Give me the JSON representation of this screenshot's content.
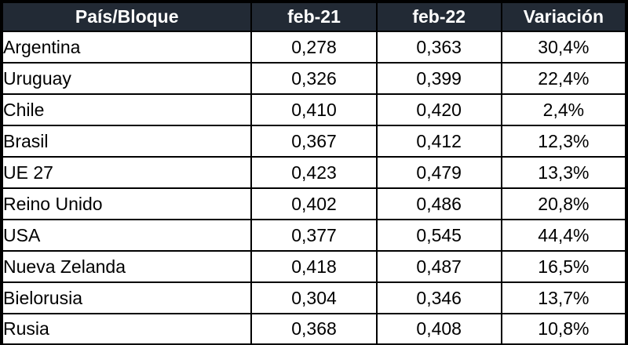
{
  "chart_data": {
    "type": "table",
    "columns": [
      "País/Bloque",
      "feb-21",
      "feb-22",
      "Variación"
    ],
    "rows": [
      [
        "Argentina",
        "0,278",
        "0,363",
        "30,4%"
      ],
      [
        "Uruguay",
        "0,326",
        "0,399",
        "22,4%"
      ],
      [
        "Chile",
        "0,410",
        "0,420",
        "2,4%"
      ],
      [
        "Brasil",
        "0,367",
        "0,412",
        "12,3%"
      ],
      [
        "UE 27",
        "0,423",
        "0,479",
        "13,3%"
      ],
      [
        "Reino Unido",
        "0,402",
        "0,486",
        "20,8%"
      ],
      [
        "USA",
        "0,377",
        "0,545",
        "44,4%"
      ],
      [
        "Nueva Zelanda",
        "0,418",
        "0,487",
        "16,5%"
      ],
      [
        "Bielorusia",
        "0,304",
        "0,346",
        "13,7%"
      ],
      [
        "Rusia",
        "0,368",
        "0,408",
        "10,8%"
      ]
    ]
  },
  "colors": {
    "header_bg": "#222a35",
    "header_text": "#ffffff",
    "body_bg": "#ffffff",
    "body_text": "#000000",
    "border": "#000000"
  }
}
